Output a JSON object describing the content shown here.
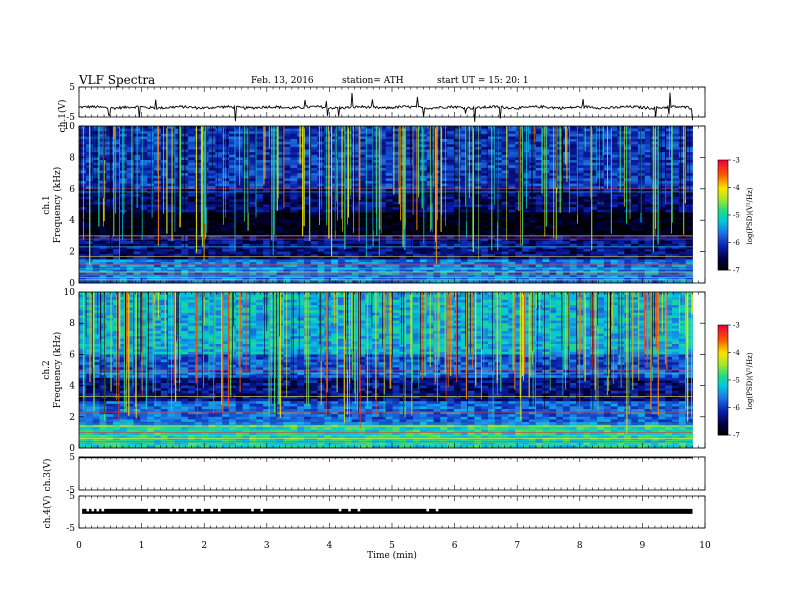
{
  "header": {
    "title": "VLF  Spectra",
    "date": "Feb. 13, 2016",
    "station": "station= ATH",
    "start": "start  UT  =    15: 20: 1"
  },
  "chart_data": [
    {
      "id": "ch1-voltage",
      "type": "line",
      "ylabel": "ch.1(V)",
      "ylim": [
        -5,
        5
      ],
      "yticks": [
        "5",
        "-5"
      ],
      "x_range_min": [
        0,
        9.8
      ],
      "baseline_v": -1.8,
      "description": "noisy near-constant trace with sharp spikes"
    },
    {
      "id": "ch1-spectrogram",
      "type": "heatmap",
      "ylabel": "Frequency  (kHz)",
      "channel": "ch.1",
      "ylim": [
        0,
        10
      ],
      "yticks": [
        "10",
        "8",
        "6",
        "4",
        "2",
        "0"
      ],
      "colorbar": {
        "label": "log(PSD)(V²/Hz)",
        "ticks": [
          "-3",
          "-4",
          "-5",
          "-6",
          "-7"
        ],
        "range": [
          -7,
          -3
        ]
      }
    },
    {
      "id": "ch2-spectrogram",
      "type": "heatmap",
      "ylabel": "Frequency  (kHz)",
      "channel": "ch.2",
      "ylim": [
        0,
        10
      ],
      "yticks": [
        "10",
        "8",
        "6",
        "4",
        "2",
        "0"
      ],
      "colorbar": {
        "label": "log(PSD)(V²/Hz)",
        "ticks": [
          "-3",
          "-4",
          "-5",
          "-6",
          "-7"
        ],
        "range": [
          -7,
          -3
        ]
      }
    },
    {
      "id": "ch3-voltage",
      "type": "line",
      "ylabel": "ch.3(V)",
      "ylim": [
        -5,
        5
      ],
      "yticks": [
        "5",
        "-5"
      ],
      "description": "flat trace at +5 V"
    },
    {
      "id": "ch4-voltage",
      "type": "line",
      "ylabel": "ch.4(V)",
      "ylim": [
        -5,
        5
      ],
      "yticks": [
        "5",
        "-5"
      ],
      "baseline_v": 0.2,
      "gaps_min": [
        0.12,
        0.2,
        0.28,
        0.36,
        1.1,
        1.22,
        1.45,
        1.55,
        1.68,
        1.82,
        1.95,
        2.1,
        2.22,
        2.75,
        2.9,
        4.15,
        4.3,
        4.45,
        5.55,
        5.7
      ]
    }
  ],
  "x_axis": {
    "label": "Time  (min)",
    "ticks": [
      "0",
      "1",
      "2",
      "3",
      "4",
      "5",
      "6",
      "7",
      "8",
      "9",
      "10"
    ],
    "range": [
      0,
      10
    ]
  }
}
